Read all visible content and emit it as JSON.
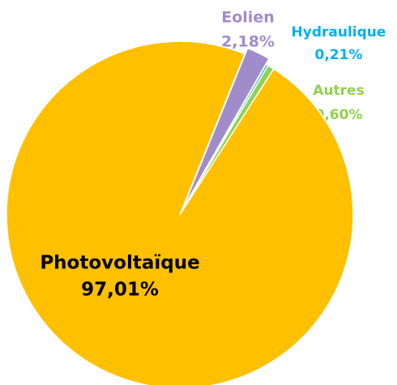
{
  "chart_data": {
    "type": "pie",
    "categories": [
      "Eolien",
      "Hydraulique",
      "Autres",
      "Photovoltaïque"
    ],
    "values": [
      2.18,
      0.21,
      0.6,
      97.01
    ],
    "value_labels": [
      "2,18%",
      "0,21%",
      "0,60%",
      "97,01%"
    ],
    "colors": [
      "#a08ccb",
      "#00b0f0",
      "#92d050",
      "#ffc000"
    ],
    "label_colors": [
      "#a08ccb",
      "#00b0f0",
      "#92d050",
      "#000000"
    ]
  }
}
